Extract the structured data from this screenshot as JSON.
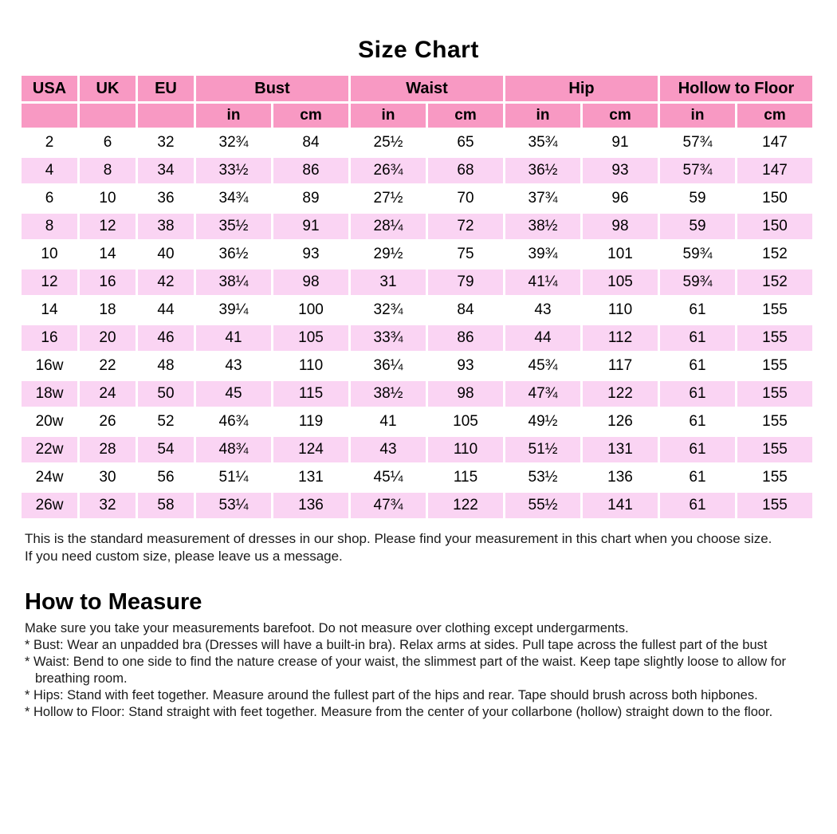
{
  "title": "Size Chart",
  "colors": {
    "header_pink": "#F899C3",
    "stripe_pink": "#FAD4F3",
    "text": "#000000"
  },
  "table": {
    "columns": [
      "USA",
      "UK",
      "EU"
    ],
    "groups": [
      {
        "label": "Bust"
      },
      {
        "label": "Waist"
      },
      {
        "label": "Hip"
      },
      {
        "label": "Hollow to Floor"
      }
    ],
    "units": [
      "in",
      "cm",
      "in",
      "cm",
      "in",
      "cm",
      "in",
      "cm"
    ],
    "rows": [
      [
        "2",
        "6",
        "32",
        "32¾",
        "84",
        "25½",
        "65",
        "35¾",
        "91",
        "57¾",
        "147"
      ],
      [
        "4",
        "8",
        "34",
        "33½",
        "86",
        "26¾",
        "68",
        "36½",
        "93",
        "57¾",
        "147"
      ],
      [
        "6",
        "10",
        "36",
        "34¾",
        "89",
        "27½",
        "70",
        "37¾",
        "96",
        "59",
        "150"
      ],
      [
        "8",
        "12",
        "38",
        "35½",
        "91",
        "28¼",
        "72",
        "38½",
        "98",
        "59",
        "150"
      ],
      [
        "10",
        "14",
        "40",
        "36½",
        "93",
        "29½",
        "75",
        "39¾",
        "101",
        "59¾",
        "152"
      ],
      [
        "12",
        "16",
        "42",
        "38¼",
        "98",
        "31",
        "79",
        "41¼",
        "105",
        "59¾",
        "152"
      ],
      [
        "14",
        "18",
        "44",
        "39¼",
        "100",
        "32¾",
        "84",
        "43",
        "110",
        "61",
        "155"
      ],
      [
        "16",
        "20",
        "46",
        "41",
        "105",
        "33¾",
        "86",
        "44",
        "112",
        "61",
        "155"
      ],
      [
        "16w",
        "22",
        "48",
        "43",
        "110",
        "36¼",
        "93",
        "45¾",
        "117",
        "61",
        "155"
      ],
      [
        "18w",
        "24",
        "50",
        "45",
        "115",
        "38½",
        "98",
        "47¾",
        "122",
        "61",
        "155"
      ],
      [
        "20w",
        "26",
        "52",
        "46¾",
        "119",
        "41",
        "105",
        "49½",
        "126",
        "61",
        "155"
      ],
      [
        "22w",
        "28",
        "54",
        "48¾",
        "124",
        "43",
        "110",
        "51½",
        "131",
        "61",
        "155"
      ],
      [
        "24w",
        "30",
        "56",
        "51¼",
        "131",
        "45¼",
        "115",
        "53½",
        "136",
        "61",
        "155"
      ],
      [
        "26w",
        "32",
        "58",
        "53¼",
        "136",
        "47¾",
        "122",
        "55½",
        "141",
        "61",
        "155"
      ]
    ]
  },
  "notes": [
    "This is the standard measurement of dresses in our shop. Please find your measurement in this chart when you choose size.",
    "If you need custom size, please leave us a message."
  ],
  "how_to_measure": {
    "heading": "How to Measure",
    "intro": "Make sure you take your measurements barefoot. Do not measure over clothing except undergarments.",
    "items": [
      {
        "lines": [
          "* Bust: Wear an unpadded bra (Dresses will have a built-in bra). Relax arms at sides. Pull tape across the fullest part of the bust"
        ]
      },
      {
        "lines": [
          "* Waist: Bend to one side to find the nature crease of your waist, the slimmest part of the waist. Keep tape slightly loose to allow for",
          "breathing room."
        ]
      },
      {
        "lines": [
          "* Hips: Stand with feet together. Measure around the fullest part of the hips and rear. Tape should brush across both hipbones."
        ]
      },
      {
        "lines": [
          "* Hollow to Floor: Stand straight with feet together. Measure from the center of your collarbone (hollow) straight down to the floor."
        ]
      }
    ]
  }
}
